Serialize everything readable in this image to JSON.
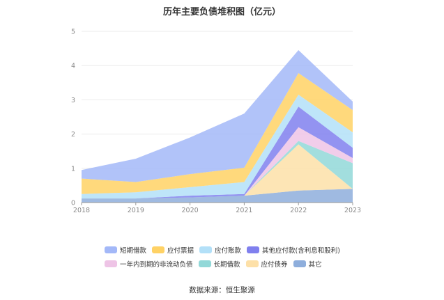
{
  "chart_data": {
    "type": "area",
    "title": "历年主要负债堆积图（亿元）",
    "source": "数据来源：恒生聚源",
    "x": [
      "2018",
      "2019",
      "2020",
      "2021",
      "2022",
      "2023"
    ],
    "ylim": [
      0,
      5
    ],
    "yticks": [
      "0",
      "1",
      "2",
      "3",
      "4",
      "5"
    ],
    "grid": true,
    "legend_position": "bottom",
    "series": [
      {
        "name": "其它",
        "color": "#8eaedc",
        "values": [
          0.12,
          0.12,
          0.15,
          0.2,
          0.35,
          0.4
        ]
      },
      {
        "name": "应付债券",
        "color": "#fde0a8",
        "values": [
          0.0,
          0.0,
          0.0,
          0.0,
          1.35,
          0.0
        ]
      },
      {
        "name": "长期借款",
        "color": "#92d8d8",
        "values": [
          0.0,
          0.0,
          0.0,
          0.0,
          0.1,
          0.75
        ]
      },
      {
        "name": "一年内到期的非流动负债",
        "color": "#eec4e6",
        "values": [
          0.0,
          0.0,
          0.0,
          0.0,
          0.4,
          0.15
        ]
      },
      {
        "name": "其他应付款(含利息和股利)",
        "color": "#8080ee",
        "values": [
          0.0,
          0.0,
          0.05,
          0.05,
          0.6,
          0.3
        ]
      },
      {
        "name": "应付账款",
        "color": "#b3e0f8",
        "values": [
          0.13,
          0.18,
          0.25,
          0.35,
          0.35,
          0.45
        ]
      },
      {
        "name": "应付票据",
        "color": "#ffd265",
        "values": [
          0.45,
          0.3,
          0.38,
          0.42,
          0.63,
          0.65
        ]
      },
      {
        "name": "短期借款",
        "color": "#a3b8f8",
        "values": [
          0.25,
          0.68,
          1.07,
          1.58,
          0.67,
          0.25
        ]
      }
    ],
    "legend_order": [
      "短期借款",
      "应付票据",
      "应付账款",
      "其他应付款(含利息和股利)",
      "一年内到期的非流动负债",
      "长期借款",
      "应付债券",
      "其它"
    ]
  }
}
